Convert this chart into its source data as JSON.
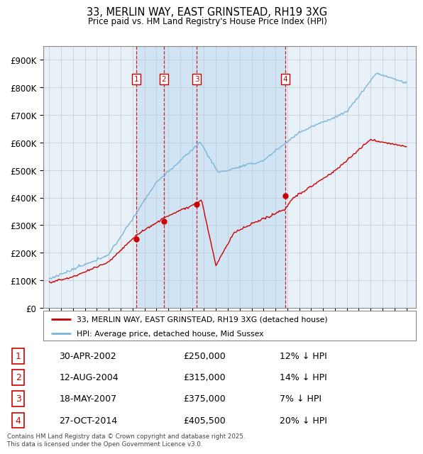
{
  "title": "33, MERLIN WAY, EAST GRINSTEAD, RH19 3XG",
  "subtitle": "Price paid vs. HM Land Registry's House Price Index (HPI)",
  "plot_bg_color": "#e8f0f8",
  "ylim": [
    0,
    950000
  ],
  "yticks": [
    0,
    100000,
    200000,
    300000,
    400000,
    500000,
    600000,
    700000,
    800000,
    900000
  ],
  "ytick_labels": [
    "£0",
    "£100K",
    "£200K",
    "£300K",
    "£400K",
    "£500K",
    "£600K",
    "£700K",
    "£800K",
    "£900K"
  ],
  "hpi_color": "#7ab4d8",
  "price_color": "#cc0000",
  "shade_color": "#d0e4f4",
  "transactions": [
    {
      "num": 1,
      "date_x": 2002.33,
      "price": 250000,
      "label": "1",
      "date_str": "30-APR-2002",
      "price_str": "£250,000",
      "pct": "12%",
      "dir": "↓"
    },
    {
      "num": 2,
      "date_x": 2004.62,
      "price": 315000,
      "label": "2",
      "date_str": "12-AUG-2004",
      "price_str": "£315,000",
      "pct": "14%",
      "dir": "↓"
    },
    {
      "num": 3,
      "date_x": 2007.38,
      "price": 375000,
      "label": "3",
      "date_str": "18-MAY-2007",
      "price_str": "£375,000",
      "pct": "7%",
      "dir": "↓"
    },
    {
      "num": 4,
      "date_x": 2014.83,
      "price": 405500,
      "label": "4",
      "date_str": "27-OCT-2014",
      "price_str": "£405,500",
      "pct": "20%",
      "dir": "↓"
    }
  ],
  "legend_line1": "33, MERLIN WAY, EAST GRINSTEAD, RH19 3XG (detached house)",
  "legend_line2": "HPI: Average price, detached house, Mid Sussex",
  "footer": "Contains HM Land Registry data © Crown copyright and database right 2025.\nThis data is licensed under the Open Government Licence v3.0.",
  "xlim_start": 1994.5,
  "xlim_end": 2025.8
}
